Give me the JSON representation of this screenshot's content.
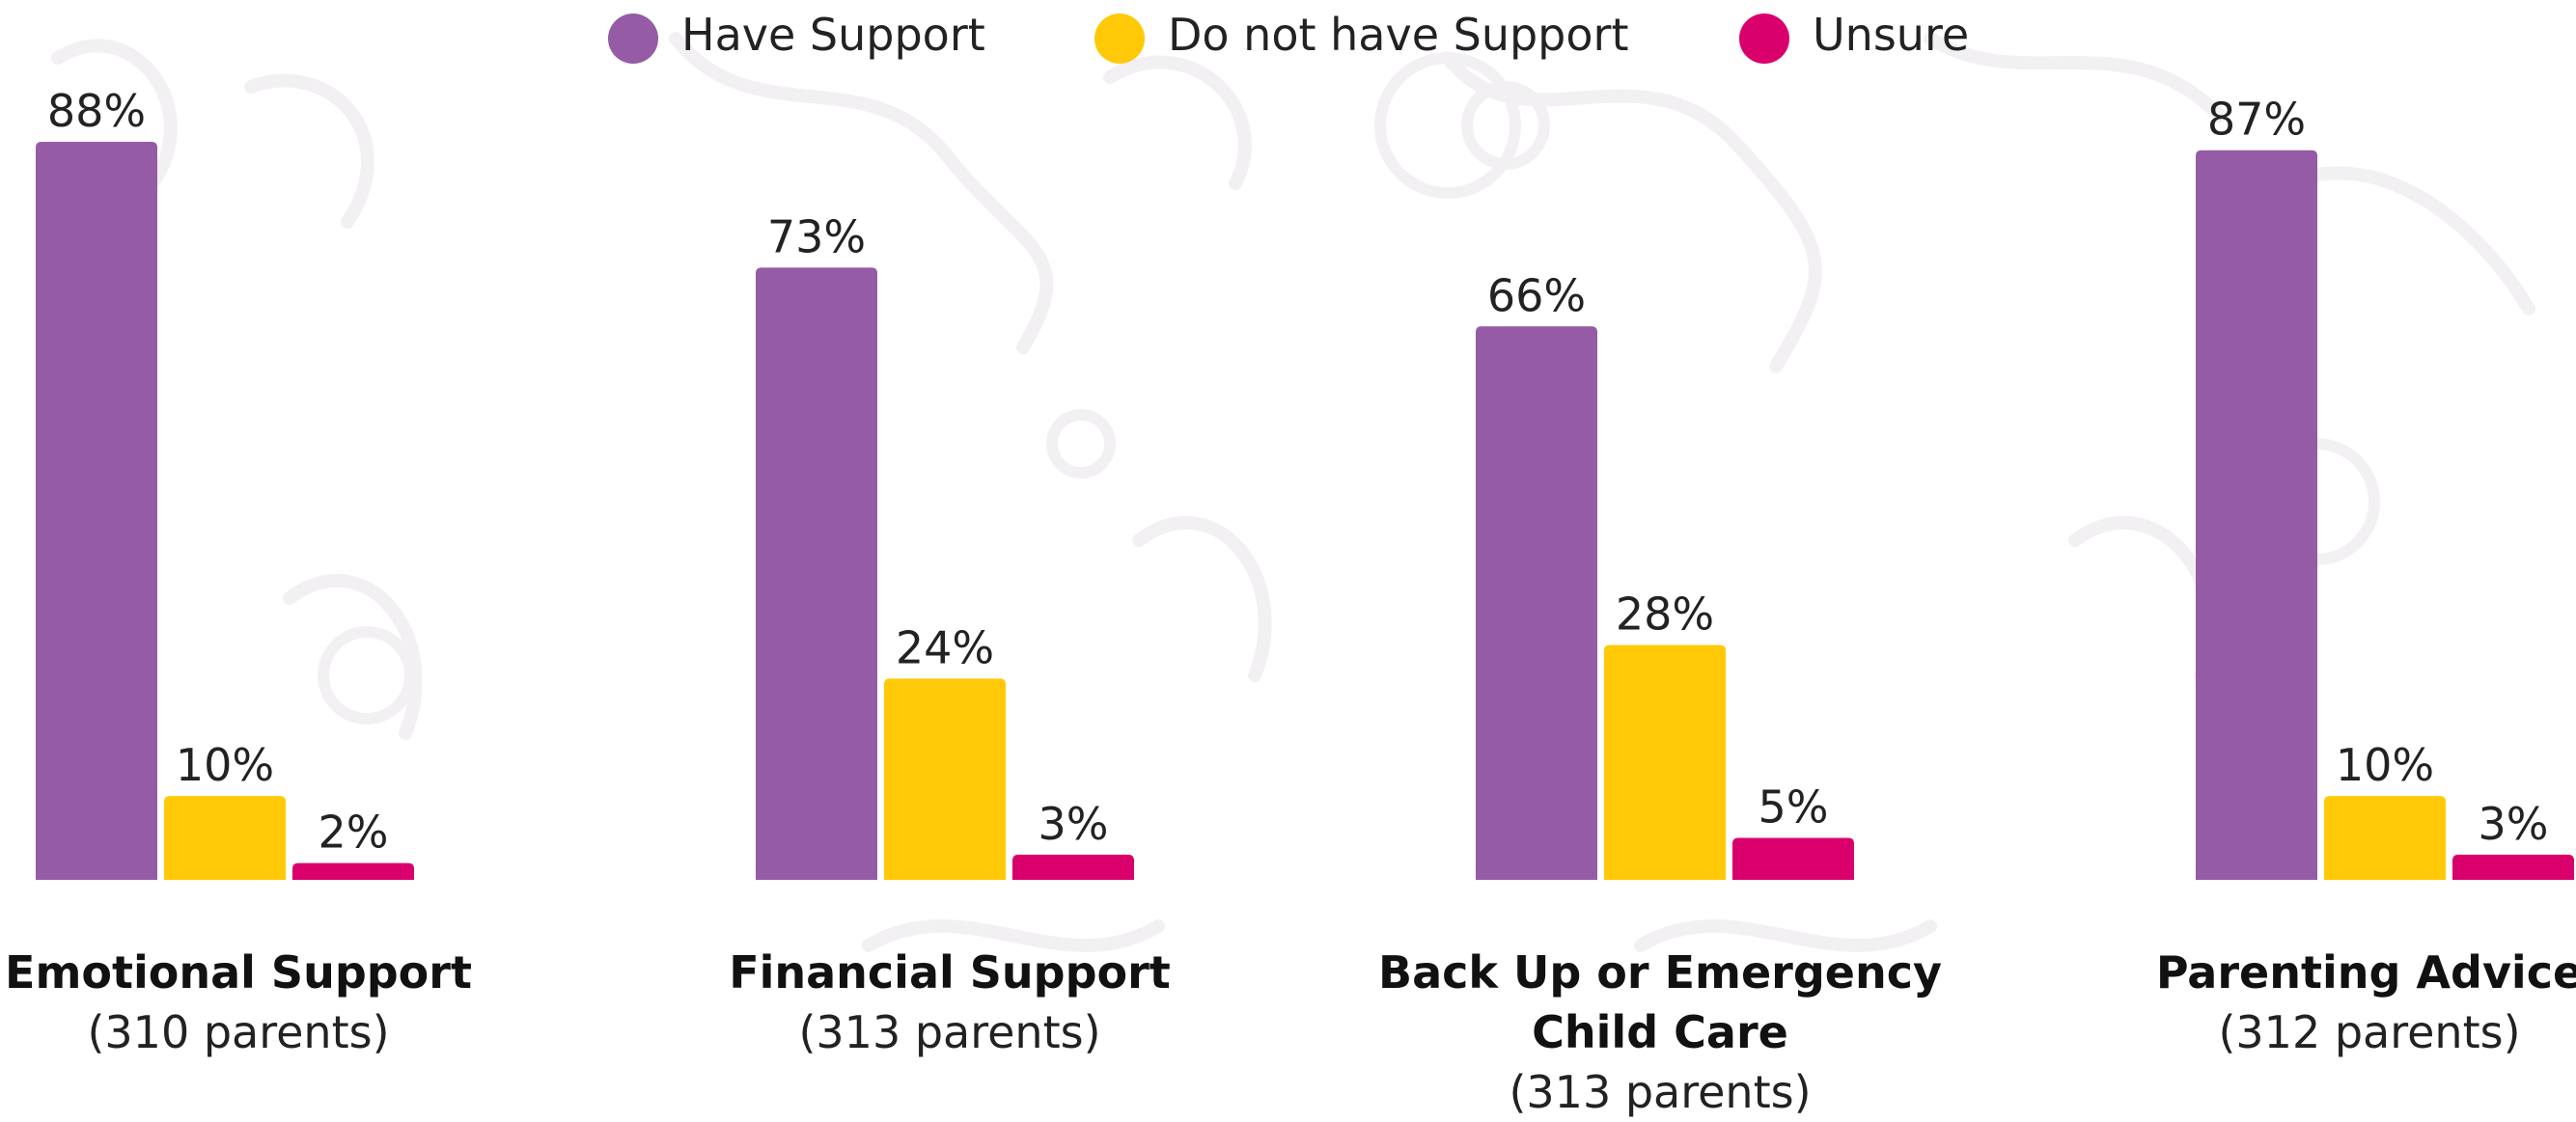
{
  "chart_data": {
    "type": "bar",
    "title": "",
    "xlabel": "",
    "ylabel": "",
    "ylim": [
      0,
      100
    ],
    "grid": false,
    "legend_placement": "top-center",
    "categories": [
      {
        "label_lines": [
          "Emotional Support"
        ],
        "sub": "(310 parents)"
      },
      {
        "label_lines": [
          "Financial Support"
        ],
        "sub": "(313 parents)"
      },
      {
        "label_lines": [
          "Back Up or Emergency",
          "Child Care"
        ],
        "sub": "(313 parents)"
      },
      {
        "label_lines": [
          "Parenting Advice"
        ],
        "sub": "(312 parents)"
      }
    ],
    "series": [
      {
        "name": "Have Support",
        "color": "#955ba5",
        "values": [
          88,
          73,
          66,
          87
        ],
        "labels": [
          "88%",
          "73%",
          "66%",
          "87%"
        ]
      },
      {
        "name": "Do not have Support",
        "color": "#ffc907",
        "values": [
          10,
          24,
          28,
          10
        ],
        "labels": [
          "10%",
          "24%",
          "28%",
          "10%"
        ]
      },
      {
        "name": "Unsure",
        "color": "#d9006c",
        "values": [
          2,
          3,
          5,
          3
        ],
        "labels": [
          "2%",
          "3%",
          "5%",
          "3%"
        ]
      }
    ]
  }
}
